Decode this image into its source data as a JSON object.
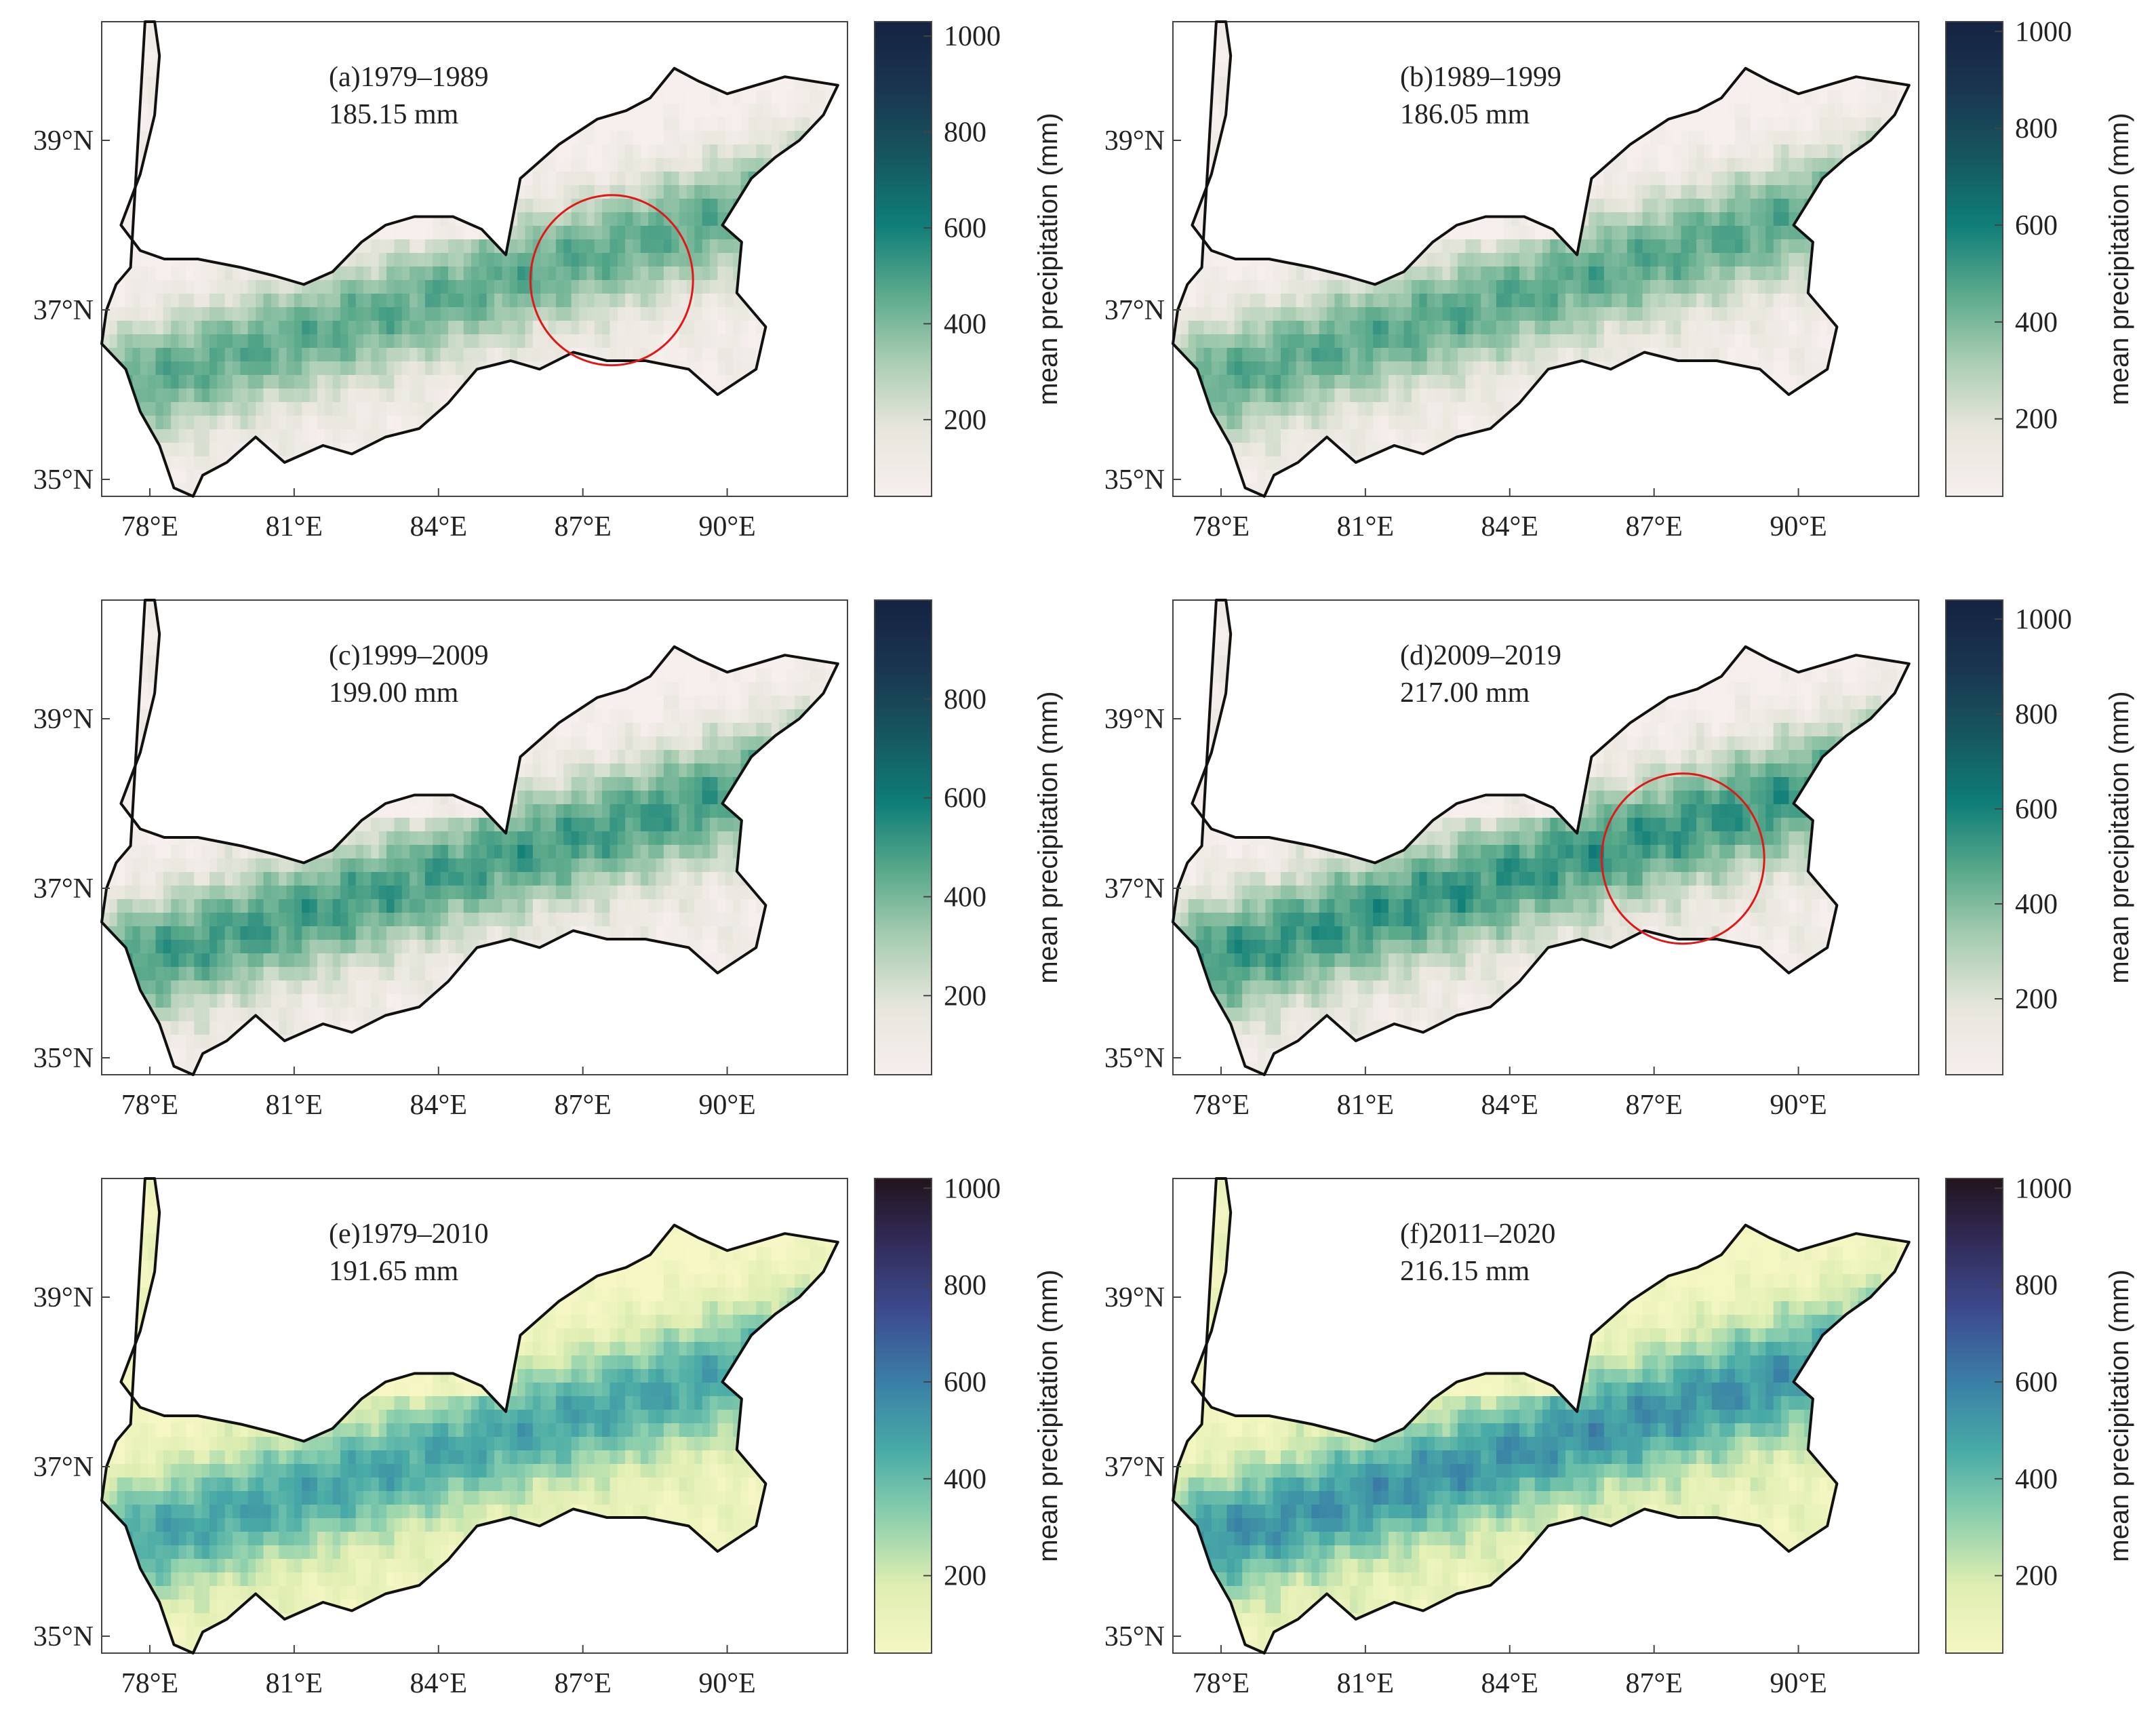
{
  "chart_data": [
    {
      "type": "heatmap",
      "panel_label": "(a)1979–1989",
      "mean_value_label": "185.15 mm",
      "colormap": "white-green",
      "colorbar_label": "mean precipitation (mm)",
      "colorbar_range": [
        40,
        1030
      ],
      "colorbar_ticks": [
        200,
        400,
        600,
        800,
        1000
      ],
      "x_ticks": [
        "78°E",
        "81°E",
        "84°E",
        "87°E",
        "90°E"
      ],
      "y_ticks": [
        "35°N",
        "37°N",
        "39°N"
      ],
      "xlim": [
        77,
        92.5
      ],
      "ylim": [
        34.8,
        40.4
      ],
      "highlight_ellipse": true
    },
    {
      "type": "heatmap",
      "panel_label": "(b)1989–1999",
      "mean_value_label": "186.05 mm",
      "colormap": "white-green",
      "colorbar_label": "mean precipitation (mm)",
      "colorbar_range": [
        40,
        1020
      ],
      "colorbar_ticks": [
        200,
        400,
        600,
        800,
        1000
      ],
      "x_ticks": [
        "78°E",
        "81°E",
        "84°E",
        "87°E",
        "90°E"
      ],
      "y_ticks": [
        "35°N",
        "37°N",
        "39°N"
      ],
      "xlim": [
        77,
        92.5
      ],
      "ylim": [
        34.8,
        40.4
      ],
      "highlight_ellipse": false
    },
    {
      "type": "heatmap",
      "panel_label": "(c)1999–2009",
      "mean_value_label": "199.00 mm",
      "colormap": "white-green",
      "colorbar_label": "mean precipitation (mm)",
      "colorbar_range": [
        40,
        1000
      ],
      "colorbar_ticks": [
        200,
        400,
        600,
        800
      ],
      "x_ticks": [
        "78°E",
        "81°E",
        "84°E",
        "87°E",
        "90°E"
      ],
      "y_ticks": [
        "35°N",
        "37°N",
        "39°N"
      ],
      "xlim": [
        77,
        92.5
      ],
      "ylim": [
        34.8,
        40.4
      ],
      "highlight_ellipse": false
    },
    {
      "type": "heatmap",
      "panel_label": "(d)2009–2019",
      "mean_value_label": "217.00 mm",
      "colormap": "white-green",
      "colorbar_label": "mean precipitation (mm)",
      "colorbar_range": [
        40,
        1040
      ],
      "colorbar_ticks": [
        200,
        400,
        600,
        800,
        1000
      ],
      "x_ticks": [
        "78°E",
        "81°E",
        "84°E",
        "87°E",
        "90°E"
      ],
      "y_ticks": [
        "35°N",
        "37°N",
        "39°N"
      ],
      "xlim": [
        77,
        92.5
      ],
      "ylim": [
        34.8,
        40.4
      ],
      "highlight_ellipse": true
    },
    {
      "type": "heatmap",
      "panel_label": "(e)1979–2010",
      "mean_value_label": "191.65 mm",
      "colormap": "yellow-blue",
      "colorbar_label": "mean precipitation (mm)",
      "colorbar_range": [
        40,
        1020
      ],
      "colorbar_ticks": [
        200,
        400,
        600,
        800,
        1000
      ],
      "x_ticks": [
        "78°E",
        "81°E",
        "84°E",
        "87°E",
        "90°E"
      ],
      "y_ticks": [
        "35°N",
        "37°N",
        "39°N"
      ],
      "xlim": [
        77,
        92.5
      ],
      "ylim": [
        34.8,
        40.4
      ],
      "highlight_ellipse": false
    },
    {
      "type": "heatmap",
      "panel_label": "(f)2011–2020",
      "mean_value_label": "216.15 mm",
      "colormap": "yellow-blue",
      "colorbar_label": "mean precipitation (mm)",
      "colorbar_range": [
        40,
        1020
      ],
      "colorbar_ticks": [
        200,
        400,
        600,
        800,
        1000
      ],
      "x_ticks": [
        "78°E",
        "81°E",
        "84°E",
        "87°E",
        "90°E"
      ],
      "y_ticks": [
        "35°N",
        "37°N",
        "39°N"
      ],
      "xlim": [
        77,
        92.5
      ],
      "ylim": [
        34.8,
        40.4
      ],
      "highlight_ellipse": false
    }
  ],
  "colors": {
    "white_green": [
      "#f7efee",
      "#e7e6dc",
      "#a9cdb2",
      "#5aa98b",
      "#0f7e78",
      "#16575f",
      "#1a3550",
      "#142341"
    ],
    "yellow_blue": [
      "#f6f7c4",
      "#dfeeb2",
      "#8dd0ad",
      "#48aaa6",
      "#3a7fa6",
      "#3d4c91",
      "#332d5d",
      "#22141d"
    ],
    "ellipse": "#e01818",
    "outline": "#111111"
  }
}
